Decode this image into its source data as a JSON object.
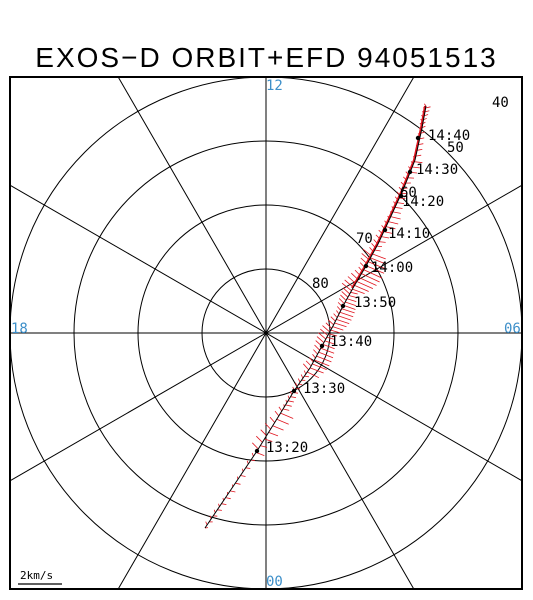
{
  "title": "EXOS−D ORBIT+EFD 94051513",
  "colors": {
    "grid": "#000000",
    "mlt_label": "#3d8fc9",
    "efd": "#e0141e",
    "orbit": "#000000"
  },
  "mlt_labels": {
    "top": "12",
    "left": "18",
    "right": "06",
    "bottom": "00"
  },
  "latitude_labels": [
    "80",
    "70",
    "60",
    "50",
    "40"
  ],
  "time_labels": [
    "13:20",
    "13:30",
    "13:40",
    "13:50",
    "14:00",
    "14:10",
    "14:20",
    "14:30",
    "14:40"
  ],
  "scale_label": "2km/s"
}
